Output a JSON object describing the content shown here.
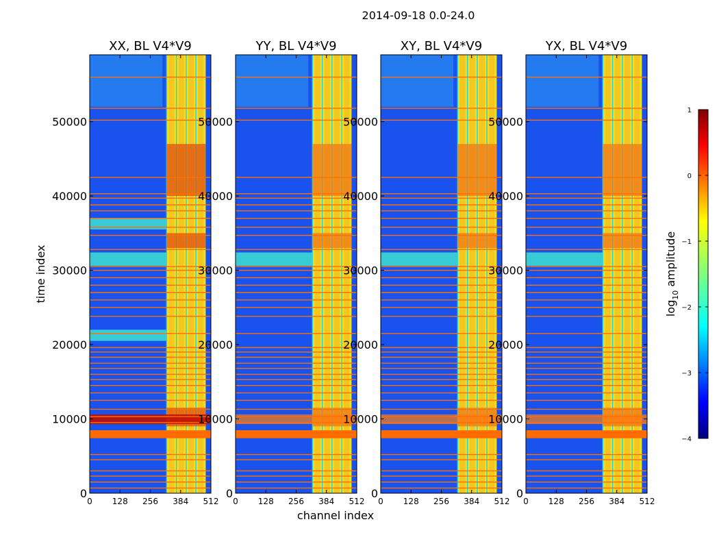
{
  "chart_data": {
    "type": "heatmap",
    "suptitle": "2014-09-18 0.0-24.0",
    "xlabel": "channel index",
    "ylabel": "time index",
    "xlim": [
      0,
      512
    ],
    "ylim": [
      0,
      59000
    ],
    "x_ticks": [
      0,
      128,
      256,
      384,
      512
    ],
    "x_tick_labels": [
      "0",
      "128",
      "256",
      "384",
      "512"
    ],
    "y_ticks": [
      0,
      10000,
      20000,
      30000,
      40000,
      50000
    ],
    "y_tick_labels": [
      "0",
      "10000",
      "20000",
      "30000",
      "40000",
      "50000"
    ],
    "panels": [
      {
        "title": "XX, BL V4*V9",
        "band_start_channel": 325,
        "band_end_channel": 490
      },
      {
        "title": "YY, BL V4*V9",
        "band_start_channel": 325,
        "band_end_channel": 490
      },
      {
        "title": "XY, BL V4*V9",
        "band_start_channel": 325,
        "band_end_channel": 490
      },
      {
        "title": "YX, BL V4*V9",
        "band_start_channel": 325,
        "band_end_channel": 490
      }
    ],
    "flag_times": [
      700,
      1500,
      2300,
      3000,
      4500,
      5200,
      7800,
      8400,
      9500,
      10300,
      11300,
      12500,
      13500,
      14500,
      15300,
      16000,
      16800,
      17500,
      18300,
      19000,
      19600,
      21500,
      23800,
      25000,
      26000,
      27000,
      28000,
      29000,
      30000,
      30500,
      32800,
      34700,
      35800,
      37000,
      38000,
      38800,
      39700,
      40300,
      42500,
      50200,
      51800,
      56000
    ],
    "colorbar": {
      "label": "log10 amplitude",
      "label_text": "log",
      "label_sub": "10",
      "label_rest": " amplitude",
      "range": [
        -4,
        1
      ],
      "ticks": [
        1,
        0,
        -1,
        -2,
        -3,
        -4
      ],
      "tick_labels": [
        "1",
        "0",
        "−1",
        "−2",
        "−3",
        "−4"
      ],
      "colormap": "jet"
    }
  }
}
